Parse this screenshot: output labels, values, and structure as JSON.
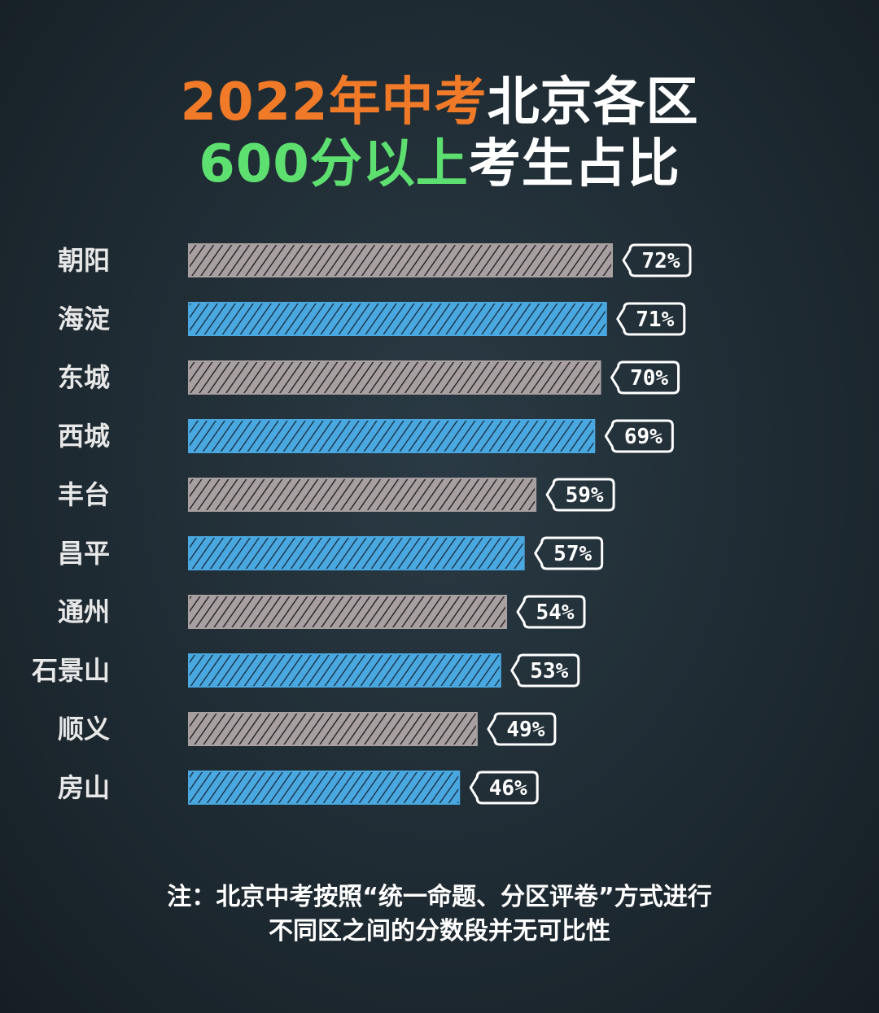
{
  "title": {
    "line1": [
      {
        "text": "2022年中考",
        "color": "#f07a28"
      },
      {
        "text": "北京各区",
        "color": "#ffffff"
      }
    ],
    "line2": [
      {
        "text": "600分以上",
        "color": "#5ee070"
      },
      {
        "text": "考生占比",
        "color": "#ffffff"
      }
    ]
  },
  "chart_data": {
    "type": "bar",
    "orientation": "horizontal",
    "categories": [
      "朝阳",
      "海淀",
      "东城",
      "西城",
      "丰台",
      "昌平",
      "通州",
      "石景山",
      "顺义",
      "房山"
    ],
    "values": [
      72,
      71,
      70,
      69,
      59,
      57,
      54,
      53,
      49,
      46
    ],
    "value_labels": [
      "72%",
      "71%",
      "70%",
      "69%",
      "59%",
      "57%",
      "54%",
      "53%",
      "49%",
      "46%"
    ],
    "unit": "%",
    "bar_colors": [
      "#a8a0a0",
      "#4aa8e0"
    ],
    "grid": false,
    "legend": "none"
  },
  "footnote": {
    "line1": "注：北京中考按照“统一命题、分区评卷”方式进行",
    "line2": "不同区之间的分数段并无可比性"
  }
}
